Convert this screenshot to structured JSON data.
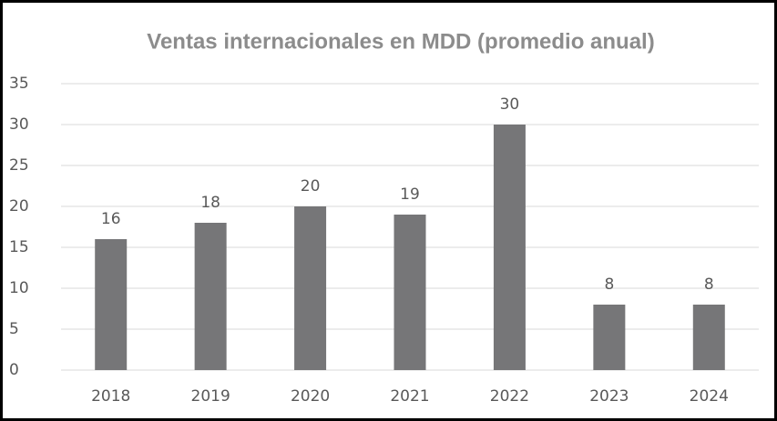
{
  "chart_data": {
    "type": "bar",
    "title": "Ventas internacionales en MDD (promedio anual)",
    "categories": [
      "2018",
      "2019",
      "2020",
      "2021",
      "2022",
      "2023",
      "2024"
    ],
    "values": [
      16,
      18,
      20,
      19,
      30,
      8,
      8
    ],
    "color": "#767678",
    "ylim": [
      0,
      35
    ],
    "yticks": [
      0,
      5,
      10,
      15,
      20,
      25,
      30,
      35
    ],
    "grid": true
  }
}
